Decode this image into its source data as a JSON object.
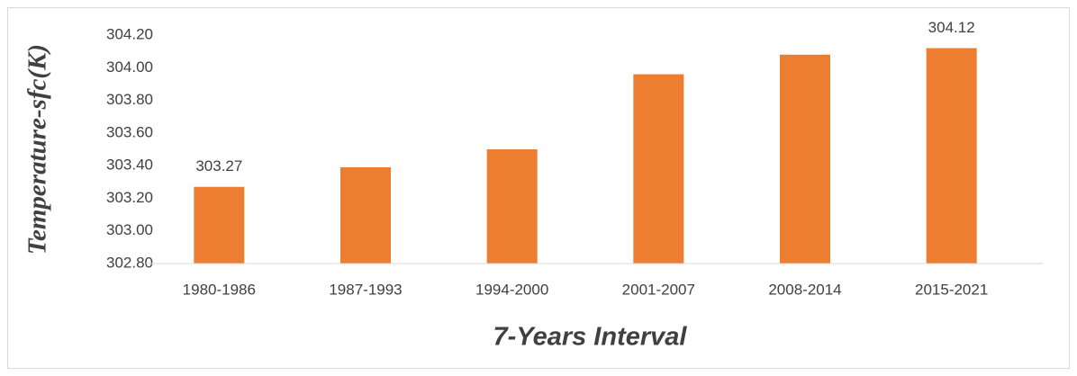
{
  "chart_data": {
    "type": "bar",
    "x_label": "7-Years Interval",
    "y_label": "Temperature-sfc(K)",
    "categories": [
      "1980-1986",
      "1987-1993",
      "1994-2000",
      "2001-2007",
      "2008-2014",
      "2015-2021"
    ],
    "values": [
      303.27,
      303.39,
      303.5,
      303.96,
      304.08,
      304.12
    ],
    "value_labels": [
      "303.27",
      null,
      null,
      null,
      null,
      "304.12"
    ],
    "color": "#ed7d31",
    "ylim": [
      302.8,
      304.2
    ],
    "yticks": [
      {
        "value": 302.8,
        "label": "302.80"
      },
      {
        "value": 303.0,
        "label": "303.00"
      },
      {
        "value": 303.2,
        "label": "303.20"
      },
      {
        "value": 303.4,
        "label": "303.40"
      },
      {
        "value": 303.6,
        "label": "303.60"
      },
      {
        "value": 303.8,
        "label": "303.80"
      },
      {
        "value": 304.0,
        "label": "304.00"
      },
      {
        "value": 304.2,
        "label": "304.20"
      }
    ],
    "grid": false
  }
}
